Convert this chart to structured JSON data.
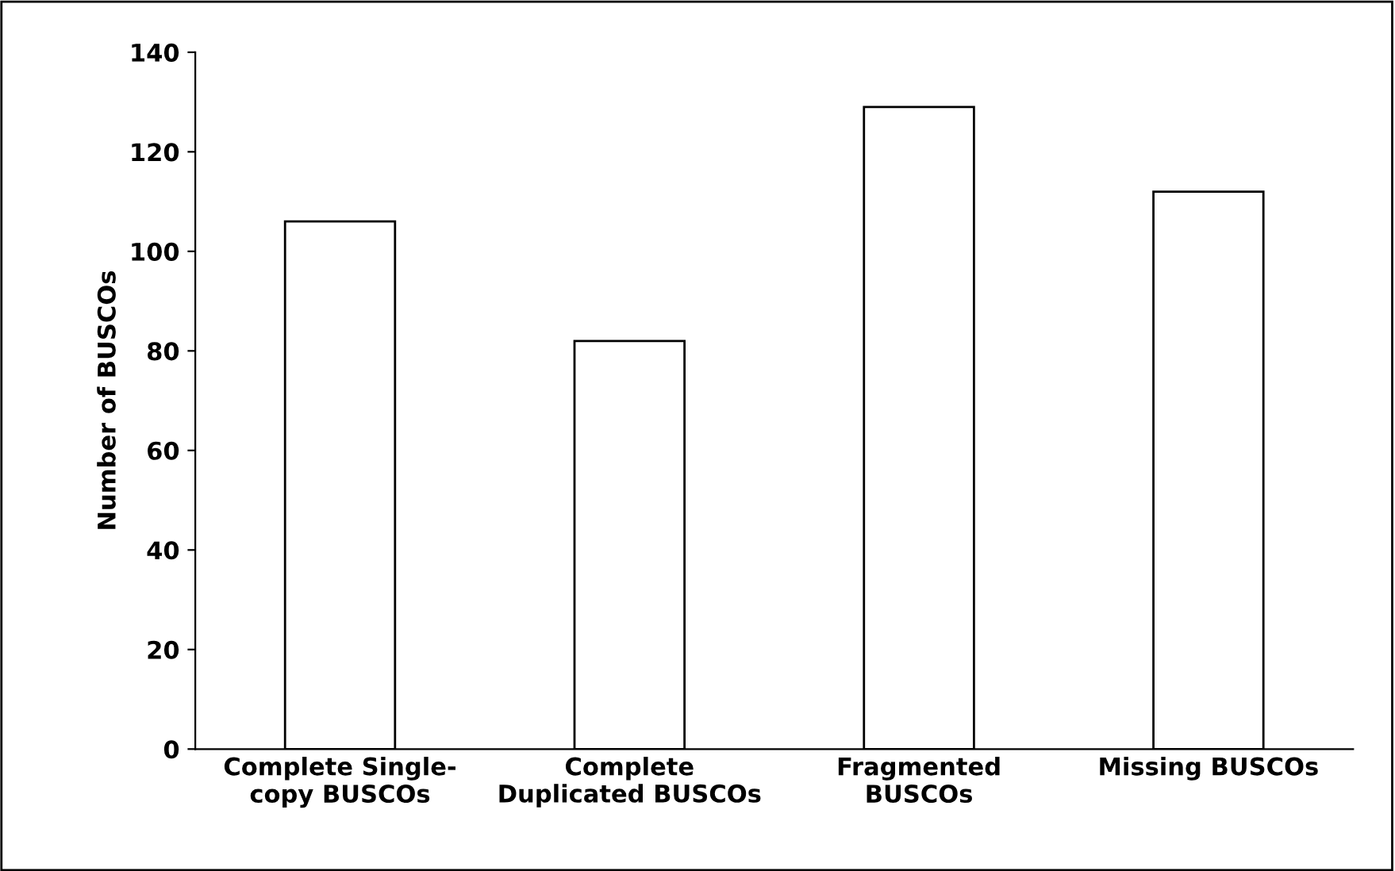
{
  "chart_data": {
    "type": "bar",
    "categories": [
      "Complete Single-\ncopy BUSCOs",
      "Complete\nDuplicated BUSCOs",
      "Fragmented\nBUSCOs",
      "Missing BUSCOs"
    ],
    "values": [
      106,
      82,
      129,
      112
    ],
    "color": "#ffffff",
    "ylabel": "Number of BUSCOs",
    "ylim": [
      0,
      140
    ],
    "yticks": [
      0,
      20,
      40,
      60,
      80,
      100,
      120,
      140
    ],
    "grid": false,
    "legend": false
  }
}
